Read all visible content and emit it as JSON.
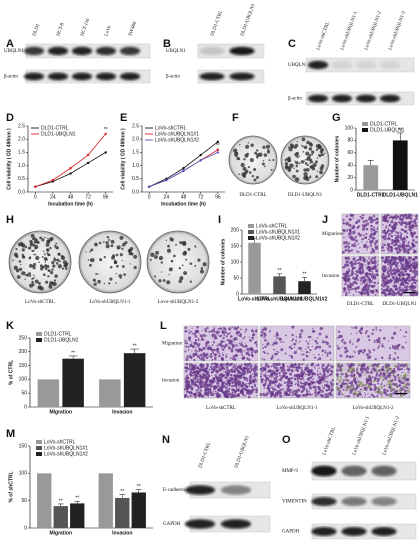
{
  "panel_labels": [
    "A",
    "B",
    "C",
    "D",
    "E",
    "F",
    "G",
    "H",
    "I",
    "J",
    "K",
    "L",
    "M",
    "N",
    "O"
  ],
  "blots": {
    "A": {
      "lanes": [
        "DLD1",
        "HCT-8",
        "HCT-116",
        "LoVo",
        "SW480"
      ],
      "rows": [
        "UBQLN1",
        "β-actin"
      ]
    },
    "B": {
      "lanes": [
        "DLD1-CTRL",
        "DLD1-UBQLN1"
      ],
      "rows": [
        "UBQLN1",
        "β-actin"
      ]
    },
    "C": {
      "lanes": [
        "LoVo-shCTRL",
        "LoVo-shUBQLN1-1",
        "LoVo-shUBQLN1-2",
        "LoVo-shUBQLN1-3"
      ],
      "rows": [
        "UBQLN1",
        "β-actin"
      ]
    },
    "N": {
      "lanes": [
        "DLD1-CTRL",
        "DLD1-UBQLN1"
      ],
      "rows": [
        "E-cadherin",
        "GAPDH"
      ]
    },
    "O": {
      "lanes": [
        "LoVo-shCTRL",
        "LoVo-shUBQLN1-1",
        "LoVo-shUBQLN1-2"
      ],
      "rows": [
        "MMP-9",
        "VIMENTIN",
        "GAPDH"
      ]
    }
  },
  "images": {
    "F": {
      "labels": [
        "DLD1-CTRL",
        "DLD1-UBQLN1"
      ]
    },
    "H": {
      "labels": [
        "LoVo-shCTRL",
        "LoVo-shUBQLN1-1",
        "Lovo-shUBQLN1-2"
      ]
    },
    "J": {
      "rows": [
        "Migration",
        "Invasion"
      ],
      "labels": [
        "DLD1-CTRL",
        "DLD1-UBQLN1"
      ]
    },
    "L": {
      "rows": [
        "Migration",
        "Invasion"
      ],
      "labels": [
        "LoVo-shCTRL",
        "LoVo-shUBQLN1-1",
        "LoVo-shUBQLN1-2"
      ]
    }
  },
  "chart_data": [
    {
      "type": "line",
      "xlabel": "Incubation time (h)",
      "ylabel": "Cell viability ( OD 490nm )",
      "x": [
        0,
        24,
        48,
        72,
        96
      ],
      "xlim": [
        -10,
        106
      ],
      "xticks": [
        0,
        24,
        48,
        72,
        96
      ],
      "ylim": [
        0,
        2.5
      ],
      "yticks": [
        {
          "value": 0,
          "label": "0.0"
        },
        {
          "value": 0.5,
          "label": "0.5"
        },
        {
          "value": 1,
          "label": "1.0"
        },
        {
          "value": 1.5,
          "label": "1.5"
        },
        {
          "value": 2,
          "label": "2.0"
        },
        {
          "value": 2.5,
          "label": "2.5"
        }
      ],
      "series": [
        {
          "name": "DLD1-CTRL",
          "color": "#111111",
          "values": [
            0.2,
            0.4,
            0.7,
            1.1,
            1.5
          ]
        },
        {
          "name": "DLD1-UBQLN1",
          "color": "#e02020",
          "values": [
            0.2,
            0.45,
            0.9,
            1.4,
            2.2
          ]
        }
      ],
      "annotation": "**"
    },
    {
      "type": "line",
      "xlabel": "Incubation time (h)",
      "ylabel": "Cell viability ( OD 490nm )",
      "x": [
        0,
        24,
        48,
        72,
        96
      ],
      "xlim": [
        -10,
        106
      ],
      "xticks": [
        0,
        24,
        48,
        72,
        96
      ],
      "ylim": [
        0,
        2.5
      ],
      "yticks": [
        {
          "value": 0,
          "label": "0.0"
        },
        {
          "value": 0.5,
          "label": "0.5"
        },
        {
          "value": 1,
          "label": "1.0"
        },
        {
          "value": 1.5,
          "label": "1.5"
        },
        {
          "value": 2,
          "label": "2.0"
        },
        {
          "value": 2.5,
          "label": "2.5"
        }
      ],
      "series": [
        {
          "name": "LoVo-shCTRL",
          "color": "#111111",
          "values": [
            0.2,
            0.5,
            0.9,
            1.4,
            1.9
          ]
        },
        {
          "name": "LoVo-shUBQLN1#1",
          "color": "#e02020",
          "values": [
            0.2,
            0.45,
            0.8,
            1.2,
            1.6
          ]
        },
        {
          "name": "LoVo-shUBQLN1#2",
          "color": "#5050c8",
          "values": [
            0.2,
            0.45,
            0.8,
            1.2,
            1.5
          ]
        }
      ],
      "annotation": "**"
    },
    {
      "type": "bar",
      "ylabel": "Number of colonies",
      "categories": [
        "DLD1-CTRL",
        "DLD1-UBQLN1"
      ],
      "values": [
        40,
        80
      ],
      "errors": [
        8,
        12
      ],
      "colors": [
        "#999999",
        "#111111"
      ],
      "ylim": [
        0,
        100
      ],
      "yticks": [
        0,
        20,
        40,
        60,
        80,
        100
      ],
      "annotation": "**"
    },
    {
      "type": "bar",
      "ylabel": "Number of colonies",
      "categories": [
        "LoVo-shCTRL",
        "LoVo-shUBQLN1#1",
        "LoVo-shUBQLN1#2"
      ],
      "values": [
        160,
        55,
        40
      ],
      "errors": [
        15,
        8,
        12
      ],
      "colors": [
        "#999999",
        "#555555",
        "#222222"
      ],
      "ylim": [
        0,
        200
      ],
      "yticks": [
        0,
        50,
        100,
        150,
        200
      ],
      "annotation": "**"
    },
    {
      "type": "bar",
      "ylabel": "% of CTRL",
      "categories": [
        "Migration",
        "Invasion"
      ],
      "series": [
        {
          "name": "DLD1-CTRL",
          "color": "#999999",
          "values": [
            100,
            100
          ],
          "errors": [
            0,
            0
          ]
        },
        {
          "name": "DLD1-UBQLN1",
          "color": "#222222",
          "values": [
            175,
            195
          ],
          "errors": [
            10,
            15
          ]
        }
      ],
      "ylim": [
        0,
        250
      ],
      "yticks": [
        0,
        50,
        100,
        150,
        200,
        250
      ],
      "annotation": "**"
    },
    {
      "type": "bar",
      "ylabel": "% of shCTRL",
      "categories": [
        "Migration",
        "Invasion"
      ],
      "series": [
        {
          "name": "LoVo-shCTRL",
          "color": "#999999",
          "values": [
            100,
            100
          ],
          "errors": [
            0,
            0
          ]
        },
        {
          "name": "LoVo-shUBQLN1#1",
          "color": "#555555",
          "values": [
            40,
            55
          ],
          "errors": [
            4,
            6
          ]
        },
        {
          "name": "LoVo-shUBQLN1#2",
          "color": "#222222",
          "values": [
            45,
            65
          ],
          "errors": [
            4,
            5
          ]
        }
      ],
      "ylim": [
        0,
        150
      ],
      "yticks": [
        0,
        50,
        100,
        150
      ],
      "annotation": "**"
    }
  ]
}
